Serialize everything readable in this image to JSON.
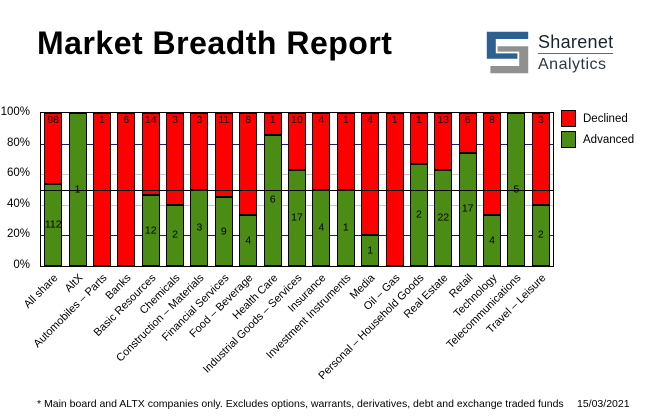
{
  "title": "Market Breadth Report",
  "logo": {
    "brand": "Sharenet",
    "sub": "Analytics",
    "blue_color": "#2d5f8f",
    "gray_color": "#909090"
  },
  "footer": {
    "note": "* Main board and ALTX companies only. Excludes options, warrants, derivatives, debt and exchange traded funds",
    "date": "15/03/2021"
  },
  "chart_data": {
    "type": "bar",
    "stacked": true,
    "normalized": "percent",
    "title": "Market Breadth Report",
    "xlabel": "",
    "ylabel": "",
    "ylim": [
      0,
      100
    ],
    "y_ticks": [
      "100%",
      "80%",
      "60%",
      "40%",
      "20%",
      "0%"
    ],
    "legend_position": "right",
    "categories": [
      "All share",
      "AltX",
      "Automobiles – Parts",
      "Banks",
      "Basic Resources",
      "Chemicals",
      "Construction – Materials",
      "Financial Services",
      "Food – Beverage",
      "Health Care",
      "Industrial Goods – Services",
      "Insurance",
      "Investment Instruments",
      "Media",
      "Oil – Gas",
      "Personal – Household Goods",
      "Real Estate",
      "Retail",
      "Technology",
      "Telecommunications",
      "Travel – Leisure"
    ],
    "series": [
      {
        "name": "Declined",
        "color": "#ff0000",
        "values": [
          98,
          0,
          1,
          6,
          14,
          3,
          3,
          11,
          8,
          1,
          10,
          4,
          1,
          4,
          1,
          1,
          13,
          6,
          8,
          0,
          3
        ]
      },
      {
        "name": "Advanced",
        "color": "#4a8c14",
        "values": [
          112,
          1,
          0,
          0,
          12,
          2,
          3,
          9,
          4,
          6,
          17,
          4,
          1,
          1,
          0,
          2,
          22,
          17,
          4,
          5,
          2
        ]
      }
    ],
    "gridlines": {
      "navy_pcts": [
        20,
        80
      ],
      "navy_color": "#1f1f70",
      "gray_pcts": [
        40,
        60
      ],
      "gray_color": "#c6c6c6",
      "mid_pct": 50,
      "mid_color": "#000000"
    }
  }
}
